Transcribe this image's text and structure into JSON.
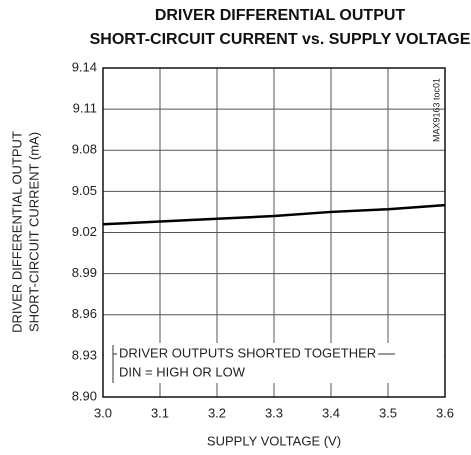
{
  "chart_data": {
    "type": "line",
    "title": [
      "DRIVER DIFFERENTIAL OUTPUT",
      "SHORT-CIRCUIT CURRENT vs. SUPPLY VOLTAGE"
    ],
    "x_label": "SUPPLY VOLTAGE (V)",
    "y_label": [
      "DRIVER DIFFERENTIAL OUTPUT",
      "SHORT-CIRCUIT CURRENT (mA)"
    ],
    "annotations": [
      "DRIVER OUTPUTS SHORTED TOGETHER",
      "DIN = HIGH OR LOW"
    ],
    "watermark": "MAX9163 toc01",
    "x": [
      3.0,
      3.1,
      3.2,
      3.3,
      3.4,
      3.5,
      3.6
    ],
    "values": [
      9.026,
      9.028,
      9.03,
      9.032,
      9.035,
      9.037,
      9.04
    ],
    "color": "#000000",
    "xlim": [
      3.0,
      3.6
    ],
    "xticks": [
      {
        "value": 3.0,
        "label": "3.0"
      },
      3.1,
      3.2,
      3.3,
      3.4,
      3.5,
      3.6
    ],
    "ylim": [
      8.9,
      9.14
    ],
    "yticks": [
      {
        "value": 8.9,
        "label": "8.90"
      },
      8.93,
      8.96,
      8.99,
      9.02,
      9.05,
      9.08,
      9.11,
      9.14
    ],
    "grid": true
  }
}
